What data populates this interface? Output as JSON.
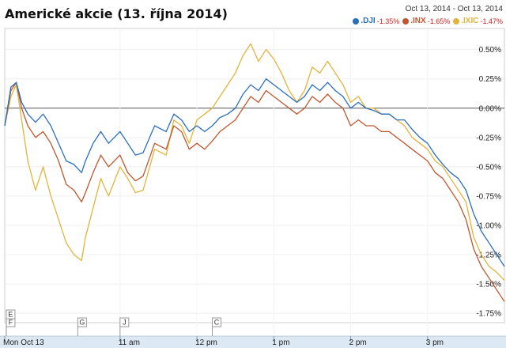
{
  "chart_data": {
    "type": "line",
    "title": "Americké akcie (13. října 2014)",
    "date_range": {
      "start": "Oct 13, 2014",
      "separator": "-",
      "end": "Oct 13, 2014"
    },
    "y_ticks": [
      "0.50%",
      "0.25%",
      "0.00%",
      "-0.25%",
      "-0.50%",
      "-0.75%",
      "-1.00%",
      "-1.25%",
      "-1.50%",
      "-1.75%"
    ],
    "y_tick_values": [
      0.5,
      0.25,
      0,
      -0.25,
      -0.5,
      -0.75,
      -1.0,
      -1.25,
      -1.5,
      -1.75
    ],
    "ylim": [
      -1.83,
      0.68
    ],
    "x_ticks": [
      {
        "label": "Mon Oct 13",
        "hour": 9.5
      },
      {
        "label": "11 am",
        "hour": 11
      },
      {
        "label": "12 pm",
        "hour": 12
      },
      {
        "label": "1 pm",
        "hour": 13
      },
      {
        "label": "2 pm",
        "hour": 14
      },
      {
        "label": "3 pm",
        "hour": 15
      }
    ],
    "xlim": [
      9.5,
      16.0
    ],
    "baseline": 0,
    "markers": [
      {
        "label": "F",
        "hour": 9.52
      },
      {
        "label": "E",
        "hour": 9.52
      },
      {
        "label": "G",
        "hour": 10.45
      },
      {
        "label": "J",
        "hour": 11.0
      },
      {
        "label": "C",
        "hour": 12.2
      }
    ],
    "series": [
      {
        "name": ".DJI",
        "change": "-1.35%",
        "color": "#2b6ebd",
        "points": [
          [
            9.5,
            -0.15
          ],
          [
            9.58,
            0.18
          ],
          [
            9.65,
            0.22
          ],
          [
            9.72,
            0.05
          ],
          [
            9.8,
            -0.05
          ],
          [
            9.9,
            -0.12
          ],
          [
            10.0,
            -0.05
          ],
          [
            10.1,
            -0.15
          ],
          [
            10.2,
            -0.3
          ],
          [
            10.3,
            -0.45
          ],
          [
            10.4,
            -0.48
          ],
          [
            10.5,
            -0.55
          ],
          [
            10.55,
            -0.45
          ],
          [
            10.65,
            -0.3
          ],
          [
            10.75,
            -0.2
          ],
          [
            10.85,
            -0.3
          ],
          [
            11.0,
            -0.2
          ],
          [
            11.1,
            -0.3
          ],
          [
            11.2,
            -0.4
          ],
          [
            11.3,
            -0.38
          ],
          [
            11.45,
            -0.15
          ],
          [
            11.6,
            -0.2
          ],
          [
            11.7,
            -0.05
          ],
          [
            11.8,
            -0.1
          ],
          [
            11.9,
            -0.2
          ],
          [
            12.0,
            -0.15
          ],
          [
            12.1,
            -0.2
          ],
          [
            12.2,
            -0.15
          ],
          [
            12.3,
            -0.08
          ],
          [
            12.4,
            -0.05
          ],
          [
            12.5,
            0.0
          ],
          [
            12.6,
            0.12
          ],
          [
            12.7,
            0.2
          ],
          [
            12.8,
            0.15
          ],
          [
            12.9,
            0.25
          ],
          [
            13.0,
            0.2
          ],
          [
            13.1,
            0.15
          ],
          [
            13.2,
            0.1
          ],
          [
            13.3,
            0.05
          ],
          [
            13.4,
            0.1
          ],
          [
            13.5,
            0.2
          ],
          [
            13.6,
            0.15
          ],
          [
            13.7,
            0.22
          ],
          [
            13.8,
            0.15
          ],
          [
            13.9,
            0.1
          ],
          [
            14.0,
            0.0
          ],
          [
            14.1,
            0.05
          ],
          [
            14.2,
            0.0
          ],
          [
            14.3,
            -0.02
          ],
          [
            14.4,
            -0.05
          ],
          [
            14.5,
            -0.05
          ],
          [
            14.6,
            -0.1
          ],
          [
            14.7,
            -0.1
          ],
          [
            14.8,
            -0.18
          ],
          [
            14.9,
            -0.25
          ],
          [
            15.0,
            -0.3
          ],
          [
            15.1,
            -0.4
          ],
          [
            15.2,
            -0.48
          ],
          [
            15.3,
            -0.55
          ],
          [
            15.4,
            -0.6
          ],
          [
            15.5,
            -0.7
          ],
          [
            15.6,
            -0.9
          ],
          [
            15.7,
            -1.05
          ],
          [
            15.8,
            -1.15
          ],
          [
            15.9,
            -1.25
          ],
          [
            16.0,
            -1.35
          ]
        ]
      },
      {
        "name": ".INX",
        "change": "-1.65%",
        "color": "#c0562f",
        "points": [
          [
            9.5,
            -0.15
          ],
          [
            9.58,
            0.15
          ],
          [
            9.65,
            0.22
          ],
          [
            9.72,
            0.0
          ],
          [
            9.8,
            -0.15
          ],
          [
            9.9,
            -0.25
          ],
          [
            10.0,
            -0.2
          ],
          [
            10.1,
            -0.3
          ],
          [
            10.2,
            -0.45
          ],
          [
            10.3,
            -0.65
          ],
          [
            10.4,
            -0.7
          ],
          [
            10.5,
            -0.8
          ],
          [
            10.55,
            -0.72
          ],
          [
            10.65,
            -0.55
          ],
          [
            10.75,
            -0.4
          ],
          [
            10.85,
            -0.5
          ],
          [
            11.0,
            -0.4
          ],
          [
            11.1,
            -0.55
          ],
          [
            11.2,
            -0.62
          ],
          [
            11.3,
            -0.58
          ],
          [
            11.45,
            -0.3
          ],
          [
            11.6,
            -0.35
          ],
          [
            11.7,
            -0.15
          ],
          [
            11.8,
            -0.2
          ],
          [
            11.9,
            -0.35
          ],
          [
            12.0,
            -0.3
          ],
          [
            12.1,
            -0.35
          ],
          [
            12.2,
            -0.28
          ],
          [
            12.3,
            -0.2
          ],
          [
            12.4,
            -0.15
          ],
          [
            12.5,
            -0.1
          ],
          [
            12.6,
            0.0
          ],
          [
            12.7,
            0.1
          ],
          [
            12.8,
            0.05
          ],
          [
            12.9,
            0.15
          ],
          [
            13.0,
            0.1
          ],
          [
            13.1,
            0.05
          ],
          [
            13.2,
            0.0
          ],
          [
            13.3,
            -0.05
          ],
          [
            13.4,
            0.0
          ],
          [
            13.5,
            0.1
          ],
          [
            13.6,
            0.05
          ],
          [
            13.7,
            0.12
          ],
          [
            13.8,
            0.05
          ],
          [
            13.9,
            0.0
          ],
          [
            14.0,
            -0.15
          ],
          [
            14.1,
            -0.1
          ],
          [
            14.2,
            -0.15
          ],
          [
            14.3,
            -0.15
          ],
          [
            14.4,
            -0.2
          ],
          [
            14.5,
            -0.2
          ],
          [
            14.6,
            -0.25
          ],
          [
            14.7,
            -0.3
          ],
          [
            14.8,
            -0.35
          ],
          [
            14.9,
            -0.4
          ],
          [
            15.0,
            -0.45
          ],
          [
            15.1,
            -0.55
          ],
          [
            15.2,
            -0.6
          ],
          [
            15.3,
            -0.7
          ],
          [
            15.4,
            -0.8
          ],
          [
            15.5,
            -0.95
          ],
          [
            15.6,
            -1.2
          ],
          [
            15.7,
            -1.35
          ],
          [
            15.8,
            -1.45
          ],
          [
            15.9,
            -1.55
          ],
          [
            16.0,
            -1.65
          ]
        ]
      },
      {
        "name": ".IXIC",
        "change": "-1.47%",
        "color": "#e3b43a",
        "points": [
          [
            9.5,
            -0.15
          ],
          [
            9.58,
            0.1
          ],
          [
            9.65,
            0.2
          ],
          [
            9.72,
            -0.1
          ],
          [
            9.8,
            -0.45
          ],
          [
            9.9,
            -0.7
          ],
          [
            10.0,
            -0.5
          ],
          [
            10.1,
            -0.75
          ],
          [
            10.2,
            -0.95
          ],
          [
            10.3,
            -1.15
          ],
          [
            10.4,
            -1.25
          ],
          [
            10.5,
            -1.3
          ],
          [
            10.55,
            -1.1
          ],
          [
            10.65,
            -0.85
          ],
          [
            10.75,
            -0.6
          ],
          [
            10.85,
            -0.75
          ],
          [
            11.0,
            -0.5
          ],
          [
            11.1,
            -0.6
          ],
          [
            11.2,
            -0.72
          ],
          [
            11.3,
            -0.7
          ],
          [
            11.45,
            -0.35
          ],
          [
            11.6,
            -0.4
          ],
          [
            11.7,
            -0.1
          ],
          [
            11.8,
            -0.15
          ],
          [
            11.9,
            -0.3
          ],
          [
            12.0,
            -0.1
          ],
          [
            12.1,
            -0.05
          ],
          [
            12.2,
            0.0
          ],
          [
            12.3,
            0.1
          ],
          [
            12.4,
            0.2
          ],
          [
            12.5,
            0.3
          ],
          [
            12.6,
            0.45
          ],
          [
            12.7,
            0.55
          ],
          [
            12.8,
            0.4
          ],
          [
            12.9,
            0.5
          ],
          [
            13.0,
            0.42
          ],
          [
            13.1,
            0.3
          ],
          [
            13.2,
            0.15
          ],
          [
            13.3,
            0.05
          ],
          [
            13.4,
            0.15
          ],
          [
            13.5,
            0.35
          ],
          [
            13.6,
            0.3
          ],
          [
            13.7,
            0.4
          ],
          [
            13.8,
            0.3
          ],
          [
            13.9,
            0.2
          ],
          [
            14.0,
            0.05
          ],
          [
            14.1,
            0.1
          ],
          [
            14.2,
            0.0
          ],
          [
            14.3,
            0.0
          ],
          [
            14.4,
            -0.05
          ],
          [
            14.5,
            -0.05
          ],
          [
            14.6,
            -0.1
          ],
          [
            14.7,
            -0.15
          ],
          [
            14.8,
            -0.25
          ],
          [
            14.9,
            -0.3
          ],
          [
            15.0,
            -0.35
          ],
          [
            15.1,
            -0.45
          ],
          [
            15.2,
            -0.5
          ],
          [
            15.3,
            -0.6
          ],
          [
            15.4,
            -0.7
          ],
          [
            15.5,
            -0.8
          ],
          [
            15.6,
            -1.1
          ],
          [
            15.7,
            -1.25
          ],
          [
            15.8,
            -1.35
          ],
          [
            15.9,
            -1.4
          ],
          [
            16.0,
            -1.47
          ]
        ]
      }
    ]
  }
}
